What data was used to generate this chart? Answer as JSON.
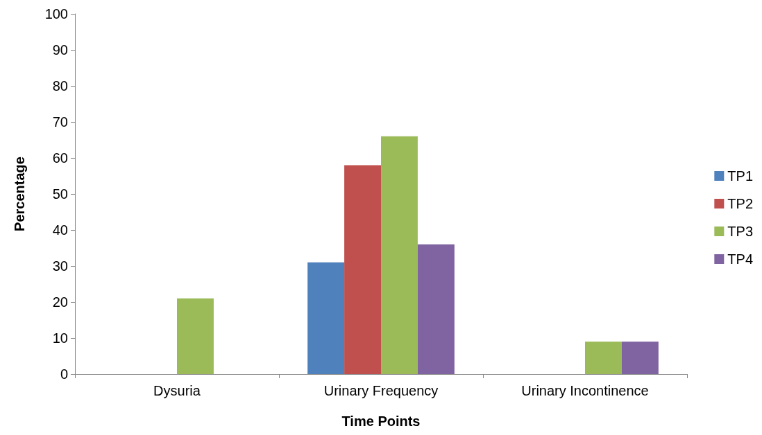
{
  "chart_data": {
    "type": "bar",
    "xlabel": "Time Points",
    "ylabel": "Percentage",
    "categories": [
      "Dysuria",
      "Urinary Frequency",
      "Urinary Incontinence"
    ],
    "series": [
      {
        "name": "TP1",
        "color": "#4f81bd",
        "values": [
          0,
          31,
          0
        ]
      },
      {
        "name": "TP2",
        "color": "#c0504d",
        "values": [
          0,
          58,
          0
        ]
      },
      {
        "name": "TP3",
        "color": "#9bbb59",
        "values": [
          21,
          66,
          9
        ]
      },
      {
        "name": "TP4",
        "color": "#8064a2",
        "values": [
          0,
          36,
          9
        ]
      }
    ],
    "ylim": [
      0,
      100
    ],
    "yticks": [
      0,
      10,
      20,
      30,
      40,
      50,
      60,
      70,
      80,
      90,
      100
    ],
    "grid": false,
    "legend": "right"
  }
}
